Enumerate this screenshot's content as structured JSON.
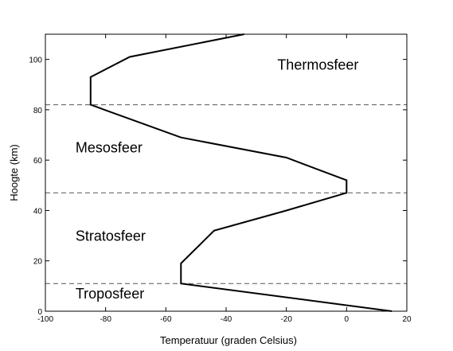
{
  "chart_data": {
    "type": "line",
    "title": "",
    "xlabel": "Temperatuur (graden Celsius)",
    "ylabel": "Hoogte (km)",
    "xlim": [
      -100,
      20
    ],
    "ylim": [
      0,
      110
    ],
    "xticks": [
      -100,
      -80,
      -60,
      -40,
      -20,
      0,
      20
    ],
    "yticks": [
      0,
      20,
      40,
      60,
      80,
      100
    ],
    "xtick_labels": [
      "-100",
      "-80",
      "-60",
      "-40",
      "-20",
      "0",
      "20"
    ],
    "ytick_labels": [
      "0",
      "20",
      "40",
      "60",
      "80",
      "100"
    ],
    "grid": false,
    "series": [
      {
        "color": "#000000",
        "x": [
          15,
          -55,
          -55,
          -44,
          -20,
          0,
          0,
          -20,
          -55,
          -85,
          -85,
          -72,
          -34
        ],
        "y": [
          0,
          11,
          19,
          32,
          40,
          47,
          52,
          61,
          69,
          82,
          93,
          101,
          110
        ]
      }
    ],
    "boundaries": [
      11,
      47,
      82
    ],
    "annotations": [
      {
        "text": "Troposfeer",
        "x": -90,
        "y": 5
      },
      {
        "text": "Stratosfeer",
        "x": -90,
        "y": 28
      },
      {
        "text": "Mesosfeer",
        "x": -90,
        "y": 63
      },
      {
        "text": "Thermosfeer",
        "x": -23,
        "y": 96
      }
    ]
  }
}
